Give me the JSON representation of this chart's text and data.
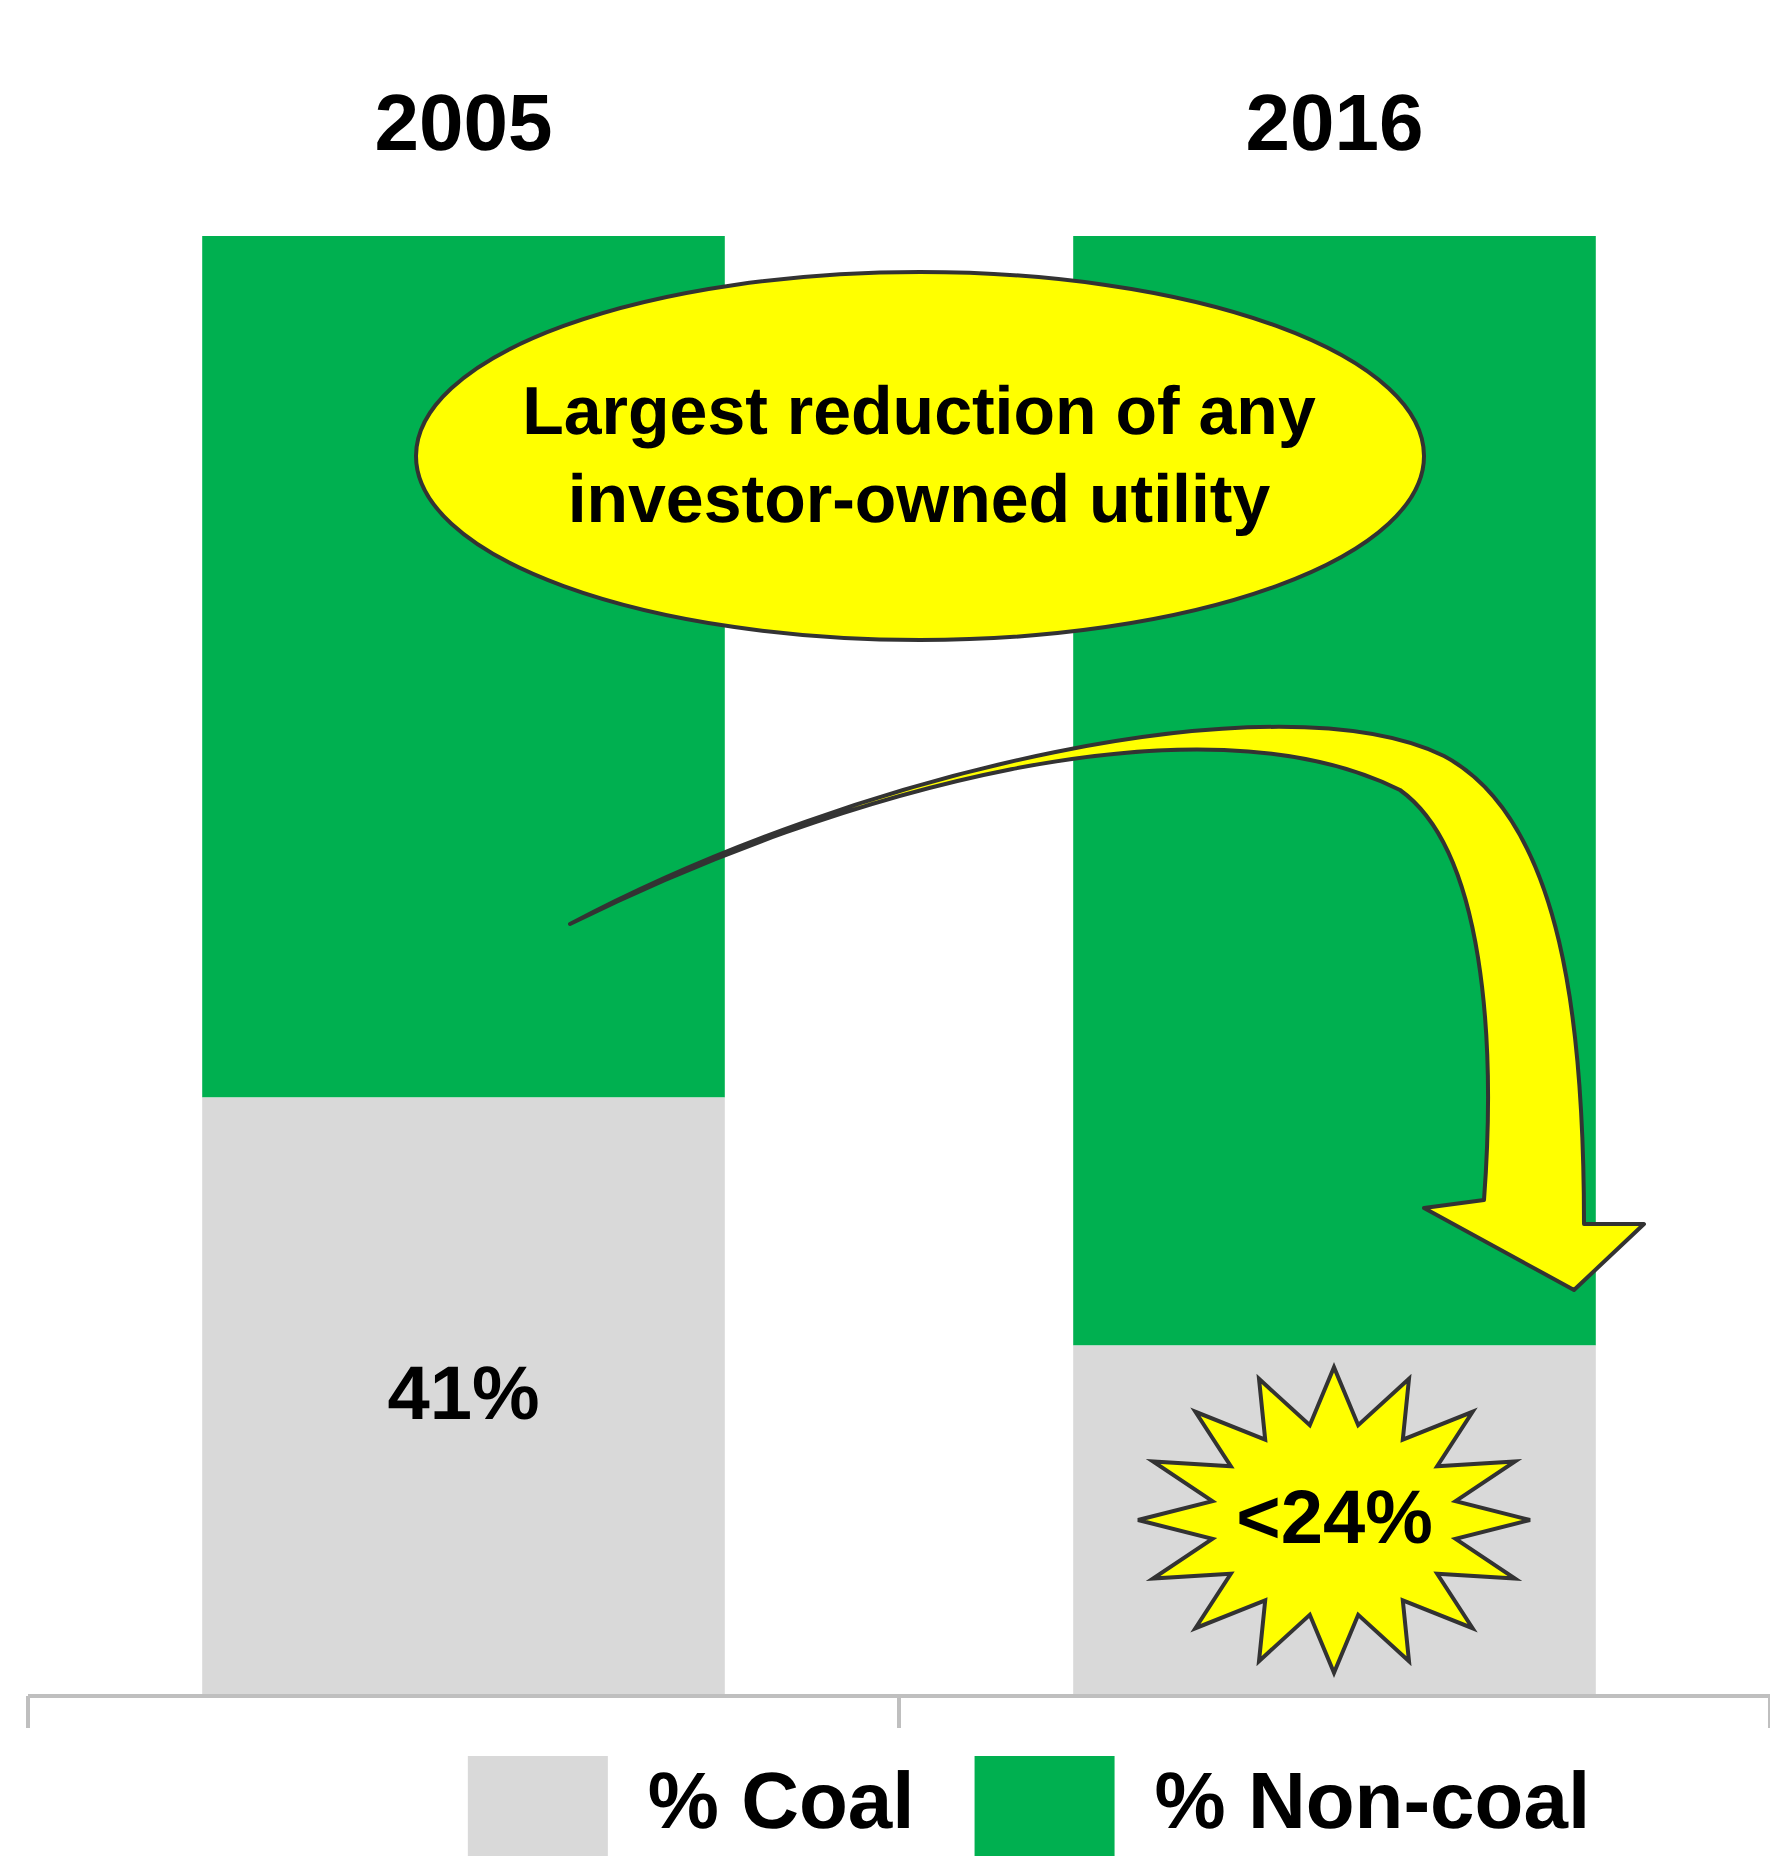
{
  "chart_data": {
    "type": "bar",
    "stacked": true,
    "categories": [
      "2005",
      "2016"
    ],
    "series": [
      {
        "name": "% Coal",
        "color": "#d9d9d9",
        "values": [
          41,
          24
        ],
        "value_labels": [
          "41%",
          "<24%"
        ]
      },
      {
        "name": "% Non-coal",
        "color": "#00b050",
        "values": [
          59,
          76
        ]
      }
    ],
    "ylim": [
      0,
      100
    ],
    "tick_labels": "x",
    "legend": "bottom",
    "grid": false,
    "annotations": [
      "Largest reduction of any investor-owned utility"
    ]
  }
}
